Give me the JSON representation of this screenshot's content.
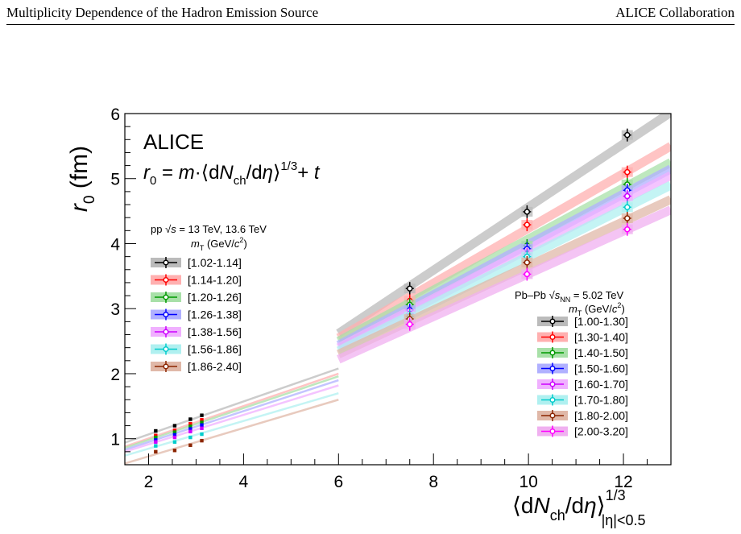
{
  "header": {
    "left": "Multiplicity Dependence of the Hadron Emission Source",
    "right": "ALICE Collaboration"
  },
  "chart_data": {
    "type": "scatter",
    "title": "ALICE",
    "subtitle": "r0 = m·⟨dNch/dη⟩^1/3 + t",
    "formula": {
      "lhs": "r",
      "lhs_sub": "0",
      "eq": " = ",
      "m": "m",
      "dot": "·",
      "open": "⟨d",
      "N": "N",
      "N_sub": "ch",
      "slash": "/d",
      "eta": "η",
      "close": "⟩",
      "sup": "1/3",
      "plus": "+ ",
      "t": "t"
    },
    "ylabel": {
      "main": "r",
      "sub": "0",
      "unit": " (fm)"
    },
    "xlabel": {
      "open": "⟨d",
      "N": "N",
      "sub": "ch",
      "slash": "/d",
      "eta": "η",
      "close": "⟩",
      "sup": "1/3",
      "range": "|η|<0.5"
    },
    "xlim": [
      1.5,
      13.0
    ],
    "ylim": [
      0.6,
      6.0
    ],
    "xticks": [
      "2",
      "4",
      "6",
      "8",
      "10",
      "12"
    ],
    "yticks": [
      "1",
      "2",
      "3",
      "4",
      "5",
      "6"
    ],
    "grid": false,
    "legend_pp": {
      "system": "pp √s = 13 TeV, 13.6 TeV",
      "sys_pp": "pp ",
      "sys_sqrt": "√",
      "sys_s": "s",
      "sys_rest": " = 13 TeV, 13.6 TeV",
      "header": "mT (GeV/c²)",
      "h_m": "m",
      "h_T": "T",
      "h_open": " (GeV/",
      "h_c": "c",
      "h_2": "2",
      "h_close": ")",
      "placement": "left"
    },
    "legend_pbpb": {
      "system": "Pb–Pb √sNN = 5.02 TeV",
      "sys_pb": "Pb–Pb ",
      "sys_sqrt": "√",
      "sys_s": "s",
      "sys_nn": "NN",
      "sys_rest": " = 5.02 TeV",
      "header": "mT (GeV/c²)",
      "h_m": "m",
      "h_T": "T",
      "h_open": " (GeV/",
      "h_c": "c",
      "h_2": "2",
      "h_close": ")",
      "placement": "bottom-right"
    },
    "series_pp": [
      {
        "name": "[1.02-1.14]",
        "color": "#000000",
        "band": "#bbbbbb",
        "x": [
          2.15,
          2.55,
          2.88,
          3.12
        ],
        "y": [
          1.12,
          1.2,
          1.3,
          1.36
        ],
        "line": [
          [
            1.5,
            0.94
          ],
          [
            6.0,
            2.08
          ]
        ]
      },
      {
        "name": "[1.14-1.20]",
        "color": "#ff0000",
        "band": "#ffb0b0",
        "x": [
          2.15,
          2.55,
          2.88,
          3.12
        ],
        "y": [
          1.05,
          1.13,
          1.23,
          1.29
        ],
        "line": [
          [
            1.5,
            0.88
          ],
          [
            6.0,
            2.0
          ]
        ]
      },
      {
        "name": "[1.20-1.26]",
        "color": "#009900",
        "band": "#a8e0a8",
        "x": [
          2.15,
          2.55,
          2.88,
          3.12
        ],
        "y": [
          1.02,
          1.1,
          1.19,
          1.25
        ],
        "line": [
          [
            1.5,
            0.86
          ],
          [
            6.0,
            1.96
          ]
        ]
      },
      {
        "name": "[1.26-1.38]",
        "color": "#0000ff",
        "band": "#b0b0ff",
        "x": [
          2.15,
          2.55,
          2.88,
          3.12
        ],
        "y": [
          0.98,
          1.06,
          1.15,
          1.21
        ],
        "line": [
          [
            1.5,
            0.83
          ],
          [
            6.0,
            1.9
          ]
        ]
      },
      {
        "name": "[1.38-1.56]",
        "color": "#cc00ff",
        "band": "#f0b0ff",
        "x": [
          2.15,
          2.55,
          2.88,
          3.12
        ],
        "y": [
          0.95,
          1.02,
          1.11,
          1.16
        ],
        "line": [
          [
            1.5,
            0.8
          ],
          [
            6.0,
            1.82
          ]
        ]
      },
      {
        "name": "[1.56-1.86]",
        "color": "#00cccc",
        "band": "#b0f0f0",
        "x": [
          2.15,
          2.55,
          2.88,
          3.12
        ],
        "y": [
          0.89,
          0.95,
          1.02,
          1.07
        ],
        "line": [
          [
            1.5,
            0.74
          ],
          [
            6.0,
            1.7
          ]
        ]
      },
      {
        "name": "[1.86-2.40]",
        "color": "#8b2500",
        "band": "#e0b8a8",
        "x": [
          2.15,
          2.55,
          2.88,
          3.12
        ],
        "y": [
          0.8,
          0.82,
          0.9,
          0.97
        ],
        "line": [
          [
            1.5,
            0.62
          ],
          [
            6.0,
            1.6
          ]
        ]
      }
    ],
    "series_pbpb": [
      {
        "name": "[1.00-1.30]",
        "color": "#000000",
        "band": "#bbbbbb",
        "x": [
          7.5,
          9.97,
          12.08
        ],
        "y": [
          3.31,
          4.49,
          5.67
        ],
        "line": [
          [
            6.0,
            2.62
          ],
          [
            13.0,
            6.02
          ]
        ]
      },
      {
        "name": "[1.30-1.40]",
        "color": "#ff0000",
        "band": "#ffb0b0",
        "x": [
          7.5,
          9.97,
          12.08
        ],
        "y": [
          3.12,
          4.29,
          5.1
        ],
        "line": [
          [
            6.0,
            2.55
          ],
          [
            13.0,
            5.5
          ]
        ]
      },
      {
        "name": "[1.40-1.50]",
        "color": "#009900",
        "band": "#a8e0a8",
        "x": [
          7.5,
          9.97,
          12.08
        ],
        "y": [
          3.06,
          3.97,
          4.91
        ],
        "line": [
          [
            6.0,
            2.5
          ],
          [
            13.0,
            5.25
          ]
        ]
      },
      {
        "name": "[1.50-1.60]",
        "color": "#0000ff",
        "band": "#b0b0ff",
        "x": [
          7.5,
          9.97,
          12.08
        ],
        "y": [
          2.98,
          3.92,
          4.82
        ],
        "line": [
          [
            6.0,
            2.44
          ],
          [
            13.0,
            5.15
          ]
        ]
      },
      {
        "name": "[1.60-1.70]",
        "color": "#cc00ff",
        "band": "#f0b0ff",
        "x": [
          7.5,
          9.97,
          12.08
        ],
        "y": [
          2.92,
          3.84,
          4.73
        ],
        "line": [
          [
            6.0,
            2.4
          ],
          [
            13.0,
            5.05
          ]
        ]
      },
      {
        "name": "[1.70-1.80]",
        "color": "#00cccc",
        "band": "#b0f0f0",
        "x": [
          7.5,
          9.97,
          12.08
        ],
        "y": [
          2.88,
          3.8,
          4.56
        ],
        "line": [
          [
            6.0,
            2.35
          ],
          [
            13.0,
            4.9
          ]
        ]
      },
      {
        "name": "[1.80-2.00]",
        "color": "#8b2500",
        "band": "#e0b8a8",
        "x": [
          7.5,
          9.97,
          12.08
        ],
        "y": [
          2.84,
          3.71,
          4.39
        ],
        "line": [
          [
            6.0,
            2.3
          ],
          [
            13.0,
            4.68
          ]
        ]
      },
      {
        "name": "[2.00-3.20]",
        "color": "#ff00ff",
        "band": "#f0b0f0",
        "x": [
          7.5,
          9.97,
          12.08
        ],
        "y": [
          2.76,
          3.53,
          4.22
        ],
        "line": [
          [
            6.0,
            2.22
          ],
          [
            13.0,
            4.52
          ]
        ]
      }
    ]
  }
}
